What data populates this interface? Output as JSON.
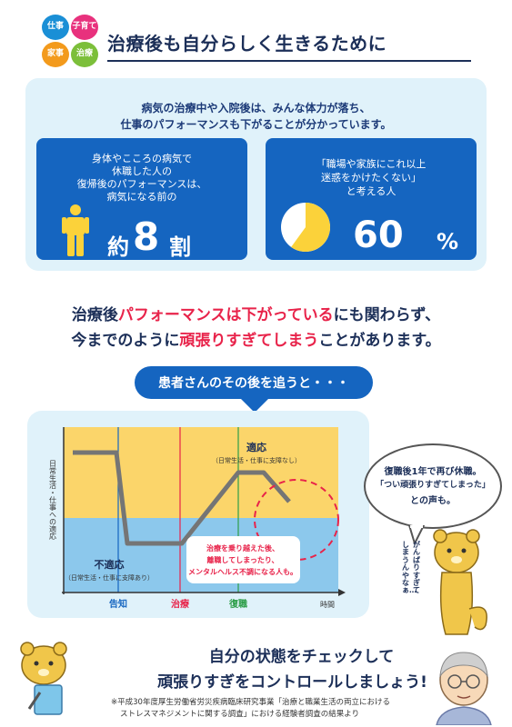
{
  "logo": {
    "top_left": "仕事",
    "top_right": "子育て",
    "bottom_left": "家事",
    "bottom_right": "治療"
  },
  "header": {
    "title": "治療後も自分らしく生きるために"
  },
  "intro": {
    "line1": "病気の治療中や入院後は、みんな体力が落ち、",
    "line2": "仕事のパフォーマンスも下がることが分かっています。"
  },
  "stat_left": {
    "line1": "身体やこころの病気で",
    "line2": "休職した人の",
    "line3": "復帰後のパフォーマンスは、",
    "line4": "病気になる前の",
    "prefix": "約",
    "value": "8",
    "suffix": "割",
    "icon": "person-icon"
  },
  "stat_right": {
    "line1": "「職場や家族にこれ以上",
    "line2": "迷惑をかけたくない」",
    "line3": "と考える人",
    "value": "60",
    "suffix": "%",
    "fraction": 0.6,
    "icon": "pie-chart-icon"
  },
  "headline": {
    "l1_a": "治療後",
    "l1_b": "パフォーマンスは下がっている",
    "l1_c": "にも関わらず、",
    "l2_a": "今までのように",
    "l2_b": "頑張りすぎてしまう",
    "l2_c": "ことがあります。"
  },
  "followup": {
    "label": "患者さんのその後を追うと・・・"
  },
  "graph": {
    "ylabel": "日常生活・仕事への適応",
    "xlabel": "時間",
    "adapt_title": "適応",
    "adapt_sub": "（日常生活・仕事に支障なし）",
    "maladapt_title": "不適応",
    "maladapt_sub": "（日常生活・仕事に支障あり）",
    "phase_1": "告知",
    "phase_2": "治療",
    "phase_3": "復職",
    "callout_1": "治療を乗り越えた後、",
    "callout_2": "離職してしまったり、",
    "callout_3": "メンタルヘルス不調になる人も。",
    "colors": {
      "adapt": "#fbd56a",
      "maladapt": "#8cc8ec",
      "line": "#757575",
      "phase_1": "#1565c0",
      "phase_2": "#e8234a",
      "phase_3": "#2e9e4a"
    }
  },
  "bubble": {
    "line1": "復職後1年で再び休職。",
    "line2": "「つい頑張りすぎてしまった」",
    "line3": "との声も。"
  },
  "character_speech": {
    "col1": "がんばりすぎて",
    "col2": "しまうんやなぁ…"
  },
  "cta": {
    "line1": "自分の状態をチェックして",
    "line2": "頑張りすぎをコントロールしましょう!"
  },
  "footnote": {
    "line1": "※平成30年度厚生労働省労災疾病臨床研究事業「治療と職業生活の両立における",
    "line2": "ストレスマネジメントに関する調査」における経験者調査の結果より"
  }
}
